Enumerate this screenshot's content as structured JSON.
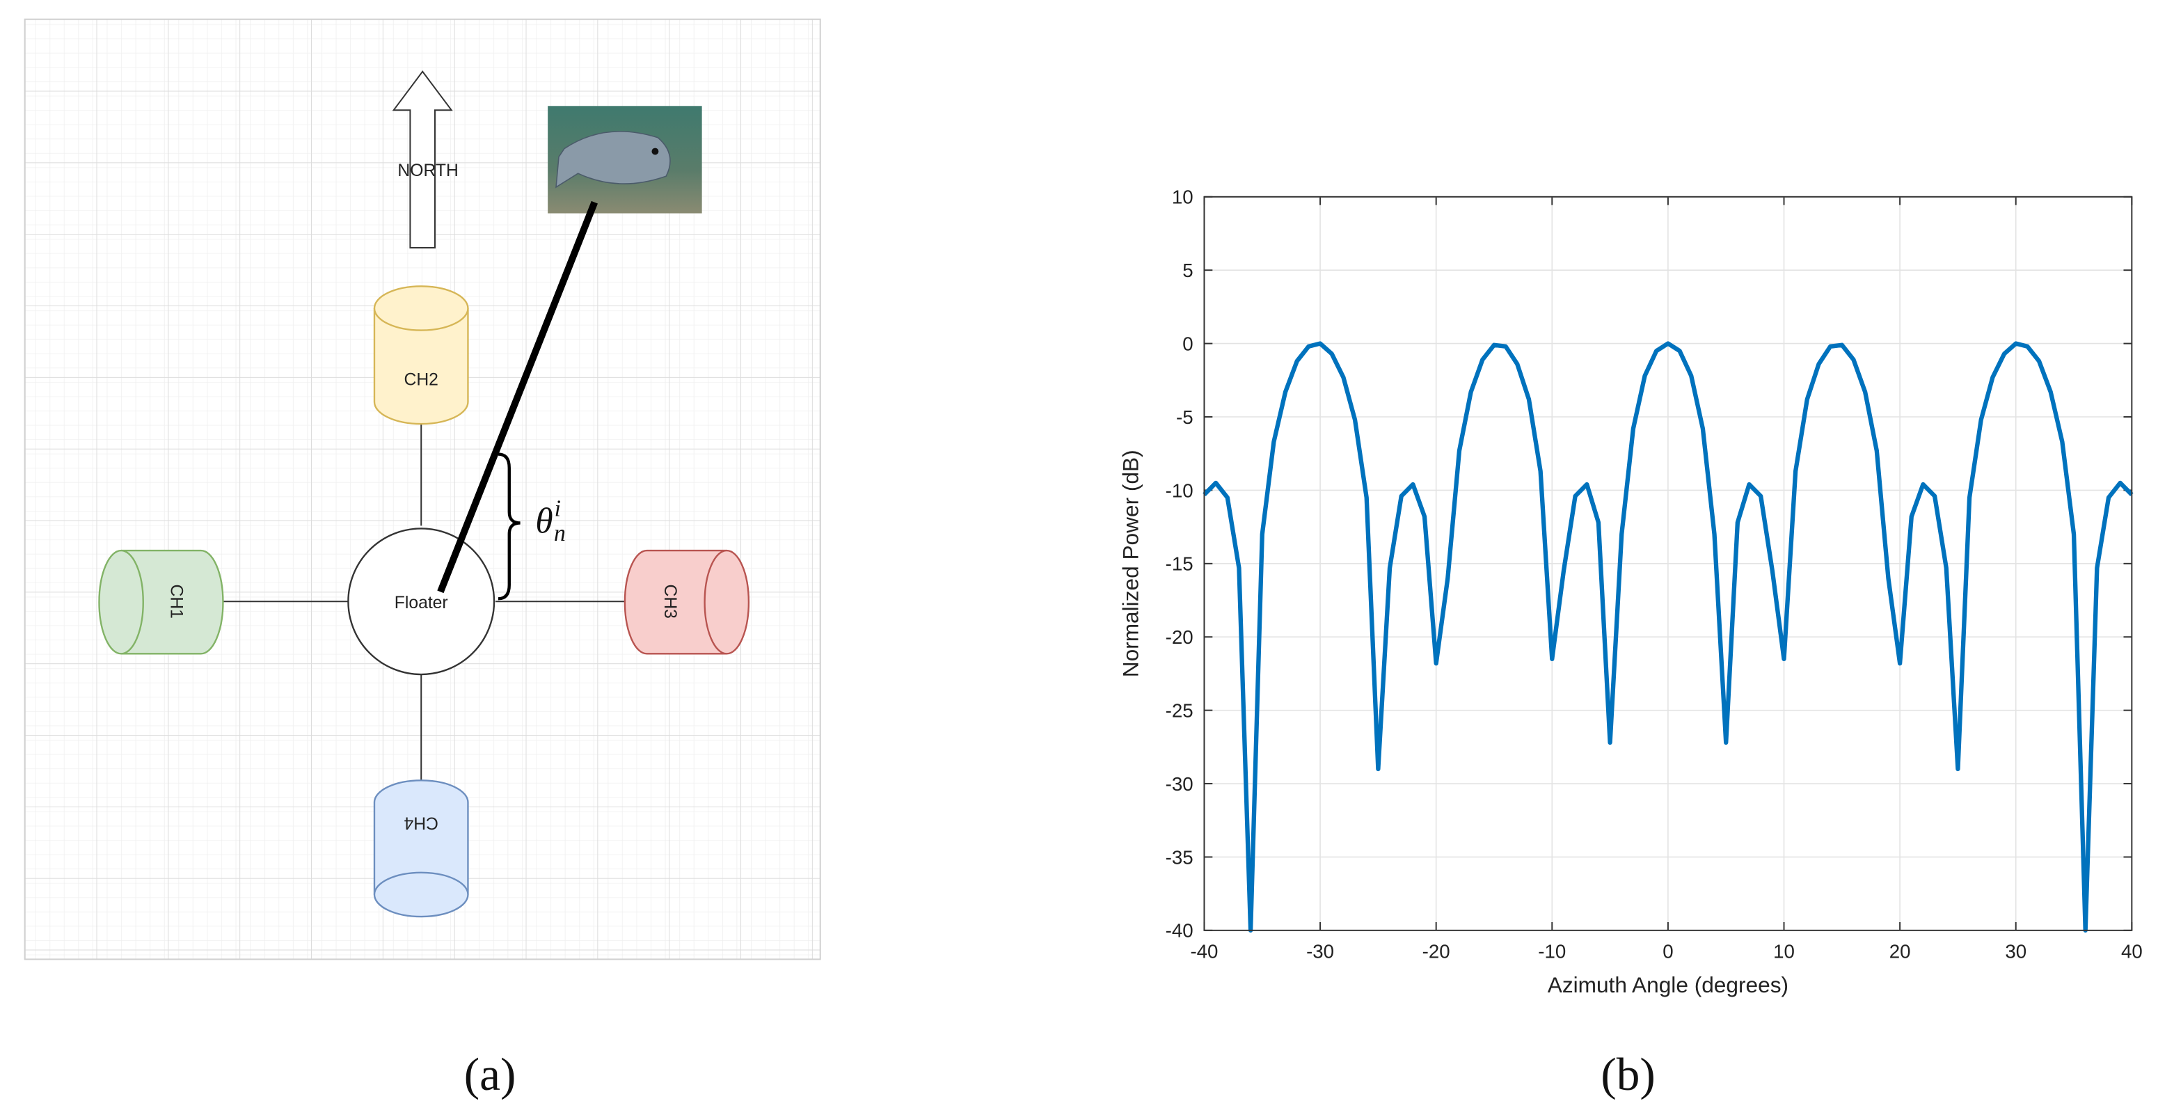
{
  "diagram": {
    "north": "NORTH",
    "channels": [
      "CH1",
      "CH2",
      "CH3",
      "CH4"
    ],
    "floater": "Floater",
    "angle_label": {
      "base": "θ",
      "sub": "n",
      "sup": "i"
    }
  },
  "captions": [
    "(a)",
    "(b)"
  ],
  "chart_data": {
    "type": "line",
    "xlabel": "Azimuth Angle (degrees)",
    "ylabel": "Normalized Power (dB)",
    "x": [
      -40,
      -39,
      -38,
      -37,
      -36,
      -35,
      -34,
      -33,
      -32,
      -31,
      -30,
      -29,
      -28,
      -27,
      -26,
      -25,
      -24,
      -23,
      -22,
      -21,
      -20,
      -19,
      -18,
      -17,
      -16,
      -15,
      -14,
      -13,
      -12,
      -11,
      -10,
      -9,
      -8,
      -7,
      -6,
      -5,
      -4,
      -3,
      -2,
      -1,
      0,
      1,
      2,
      3,
      4,
      5,
      6,
      7,
      8,
      9,
      10,
      11,
      12,
      13,
      14,
      15,
      16,
      17,
      18,
      19,
      20,
      21,
      22,
      23,
      24,
      25,
      26,
      27,
      28,
      29,
      30,
      31,
      32,
      33,
      34,
      35,
      36,
      37,
      38,
      39,
      40
    ],
    "values": [
      -10.3,
      -9.5,
      -10.5,
      -15.3,
      -40,
      -13,
      -6.7,
      -3.3,
      -1.2,
      -0.2,
      0,
      -0.7,
      -2.3,
      -5.2,
      -10.5,
      -29,
      -15.3,
      -10.4,
      -9.6,
      -11.8,
      -21.8,
      -16,
      -7.3,
      -3.3,
      -1.1,
      -0.1,
      -0.2,
      -1.4,
      -3.8,
      -8.7,
      -21.5,
      -15.5,
      -10.4,
      -9.6,
      -12.2,
      -27.2,
      -13,
      -5.8,
      -2.2,
      -0.5,
      0,
      -0.5,
      -2.2,
      -5.8,
      -13,
      -27.2,
      -12.2,
      -9.6,
      -10.4,
      -15.5,
      -21.5,
      -8.7,
      -3.8,
      -1.4,
      -0.2,
      -0.1,
      -1.1,
      -3.3,
      -7.3,
      -16,
      -21.8,
      -11.8,
      -9.6,
      -10.4,
      -15.3,
      -29,
      -10.5,
      -5.2,
      -2.3,
      -0.7,
      0,
      -0.2,
      -1.2,
      -3.3,
      -6.7,
      -13,
      -40,
      -15.3,
      -10.5,
      -9.5,
      -10.3
    ],
    "color": "#0072bd",
    "xlim": [
      -40,
      40
    ],
    "xticks": [
      -40,
      -30,
      -20,
      -10,
      0,
      10,
      20,
      30,
      40
    ],
    "ylim": [
      -40,
      10
    ],
    "yticks": [
      -40,
      -35,
      -30,
      -25,
      -20,
      -15,
      -10,
      -5,
      0,
      5,
      10
    ],
    "grid": true
  }
}
